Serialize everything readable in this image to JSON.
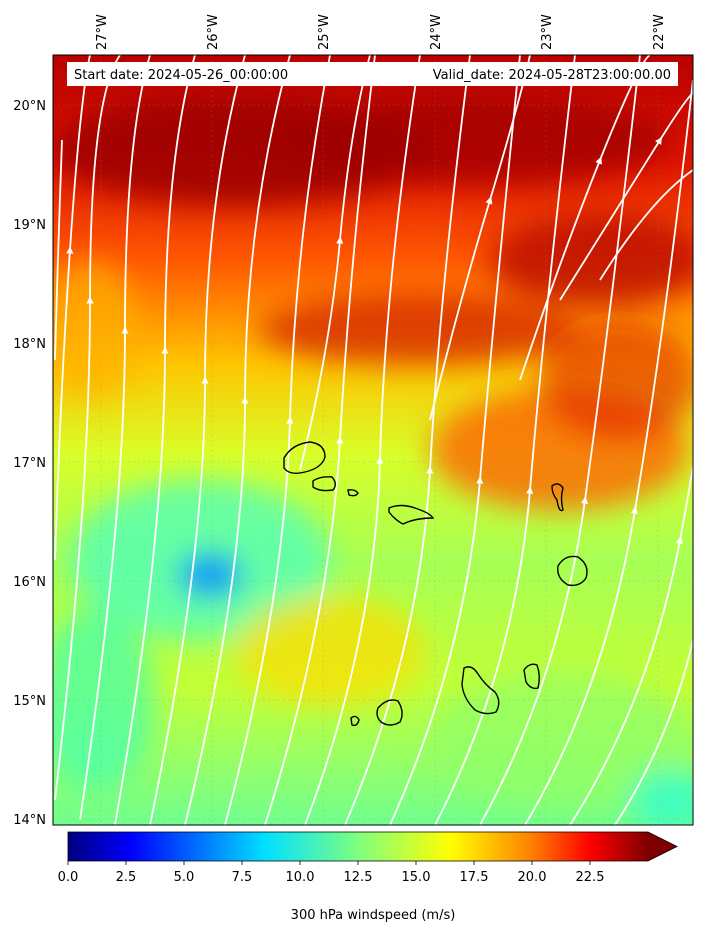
{
  "map": {
    "start_date_label": "Start date: 2024-05-26_00:00:00",
    "valid_date_label": "Valid_date: 2024-05-28T23:00:00.00",
    "lon_labels": [
      "27°W",
      "26°W",
      "25°W",
      "24°W",
      "23°W",
      "22°W"
    ],
    "lat_labels": [
      "20°N",
      "19°N",
      "18°N",
      "17°N",
      "16°N",
      "15°N",
      "14°N"
    ],
    "field": "300 hPa windspeed",
    "units": "m/s"
  },
  "colorbar": {
    "label": "300 hPa windspeed (m/s)",
    "ticks": [
      "0.0",
      "2.5",
      "5.0",
      "7.5",
      "10.0",
      "12.5",
      "15.0",
      "17.5",
      "20.0",
      "22.5"
    ],
    "min": 0,
    "max": 25,
    "extend": "max",
    "colormap": "jet",
    "colors": [
      "#00007f",
      "#0000ff",
      "#007fff",
      "#00ffff",
      "#7fff7f",
      "#ffff00",
      "#ff7f00",
      "#ff0000",
      "#7f0000"
    ]
  }
}
